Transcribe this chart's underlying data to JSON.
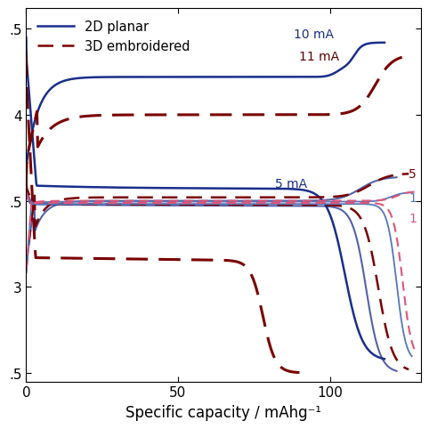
{
  "xlabel": "Specific capacity / mAhg⁻¹",
  "xlim": [
    0,
    130
  ],
  "ylim": [
    2.45,
    4.62
  ],
  "yticks": [
    2.5,
    3.0,
    3.5,
    4.0,
    4.5
  ],
  "ytick_labels": [
    ".5",
    "3",
    ".5",
    "4",
    ".5"
  ],
  "xticks": [
    0,
    50,
    100
  ],
  "color_2d": "#1a2e8a",
  "color_3d": "#7a0000",
  "color_2d_light": "#5577bb",
  "color_3d_light": "#dd5577",
  "legend_2d": "2D planar",
  "legend_3d": "3D embroidered"
}
